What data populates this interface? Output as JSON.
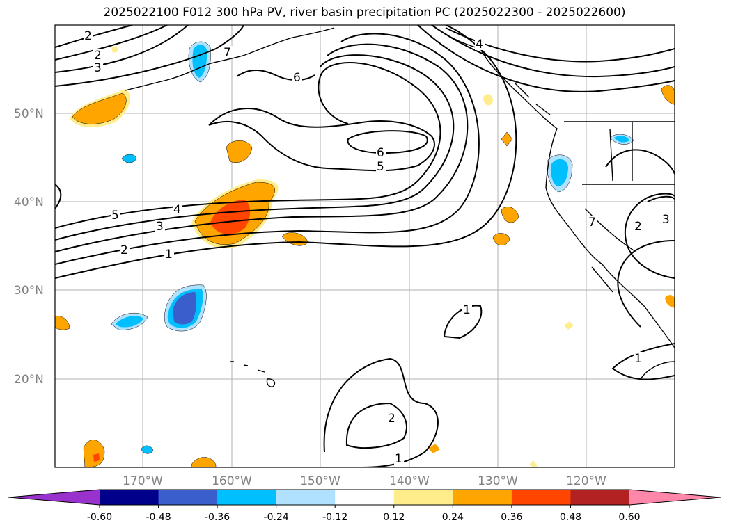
{
  "title": "2025022100 F012 300 hPa PV, river basin precipitation PC (2025022300 - 2025022600)",
  "lat_labels": [
    "50°N",
    "40°N",
    "30°N",
    "20°N"
  ],
  "lon_labels": [
    "170°W",
    "160°W",
    "150°W",
    "140°W",
    "130°W",
    "120°W"
  ],
  "pv_contour_labels": [
    "2",
    "2",
    "3",
    "5",
    "4",
    "3",
    "2",
    "1",
    "6",
    "6",
    "5",
    "4",
    "7",
    "1",
    "2",
    "1",
    "1",
    "2",
    "3",
    "7"
  ],
  "colorbar": {
    "tick_labels": [
      "-0.60",
      "-0.48",
      "-0.36",
      "-0.24",
      "-0.12",
      "0.12",
      "0.24",
      "0.36",
      "0.48",
      "0.60"
    ],
    "colors": [
      "#9932cc",
      "#00008b",
      "#3a5fcd",
      "#00bfff",
      "#b0e2ff",
      "#ffffff",
      "#ffec8b",
      "#ffa500",
      "#ff4500",
      "#b22222",
      "#ff88aa"
    ]
  }
}
